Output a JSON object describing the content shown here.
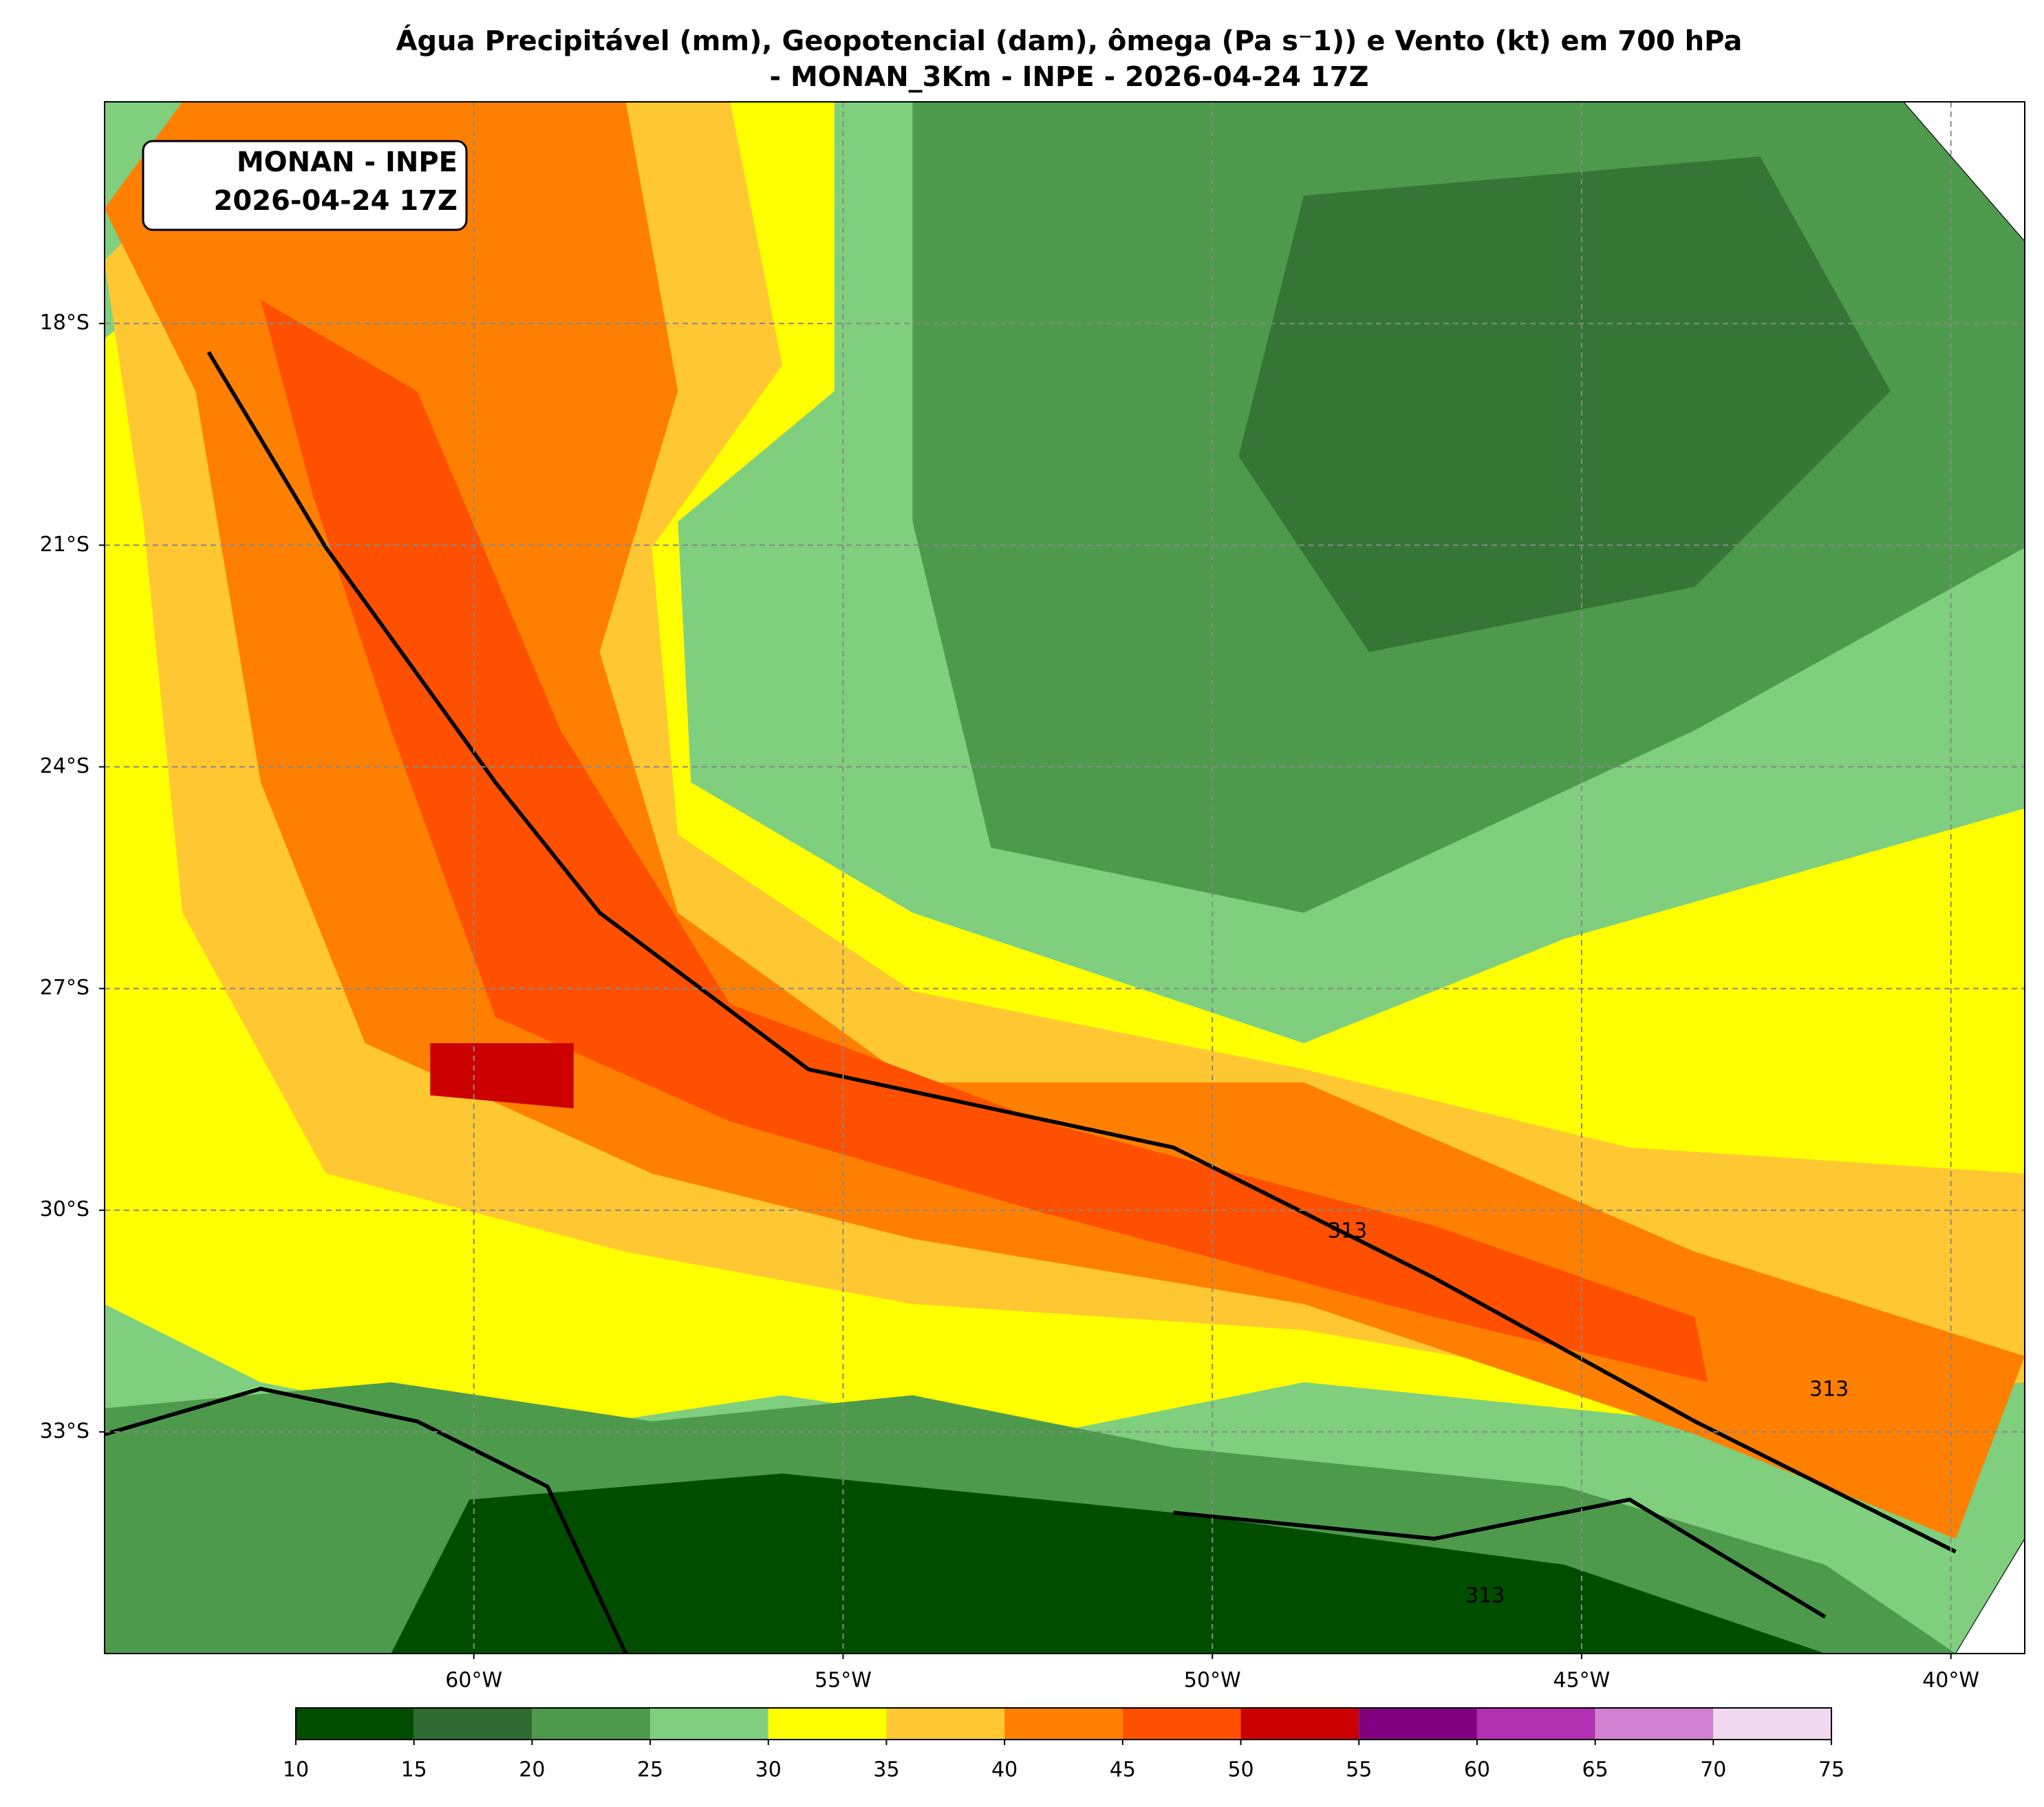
{
  "map": {
    "title": [
      "Água Precipitável (mm), Geopotencial (dam), ômega (Pa s⁻1)) e Vento (kt) em 700 hPa",
      "- MONAN_3Km - INPE - 2026-04-24 17Z"
    ],
    "info_box": [
      "MONAN - INPE",
      "2026-04-24 17Z"
    ],
    "xlim": [
      -65,
      -39
    ],
    "ylim": [
      -36,
      -15
    ],
    "xticks": [
      {
        "value": -60,
        "label": "60°W"
      },
      {
        "value": -55,
        "label": "55°W"
      },
      {
        "value": -50,
        "label": "50°W"
      },
      {
        "value": -45,
        "label": "45°W"
      },
      {
        "value": -40,
        "label": "40°W"
      }
    ],
    "yticks": [
      {
        "value": -18,
        "label": "18°S"
      },
      {
        "value": -21,
        "label": "21°S"
      },
      {
        "value": -24,
        "label": "24°S"
      },
      {
        "value": -27,
        "label": "27°S"
      },
      {
        "value": -30,
        "label": "30°S"
      },
      {
        "value": -33,
        "label": "33°S"
      }
    ],
    "grid": true,
    "contour_labels": [
      "313",
      "313",
      "313"
    ],
    "colorbar": {
      "ticks": [
        10,
        15,
        20,
        25,
        30,
        35,
        40,
        45,
        50,
        55,
        60,
        65,
        70,
        75
      ],
      "colors": [
        "#004d00",
        "#2f6b30",
        "#4d9a4d",
        "#7fcf7f",
        "#ffff00",
        "#ffc832",
        "#ff8000",
        "#ff5000",
        "#cc0000",
        "#800080",
        "#b030b0",
        "#d080d0",
        "#f0d8f0"
      ]
    }
  }
}
